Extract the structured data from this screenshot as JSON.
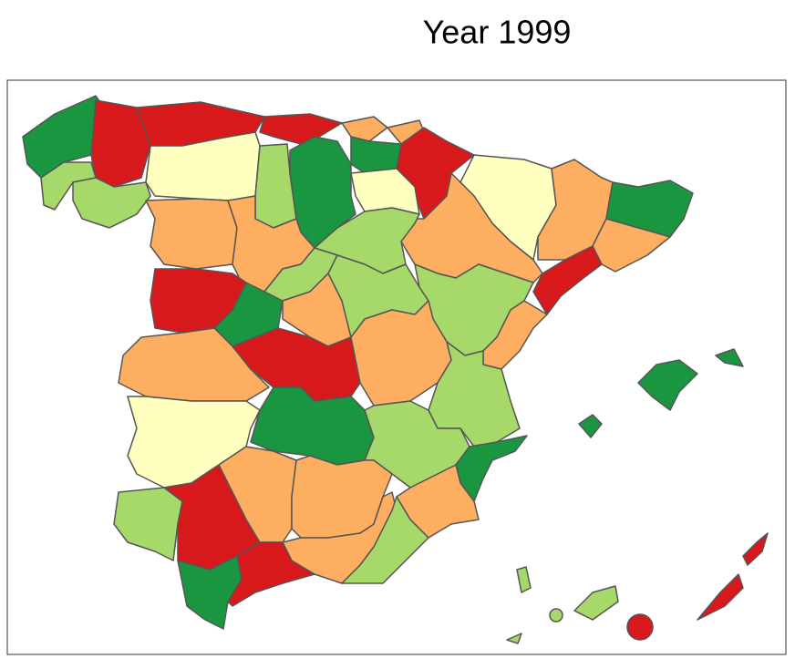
{
  "title": "Year 1999"
}
